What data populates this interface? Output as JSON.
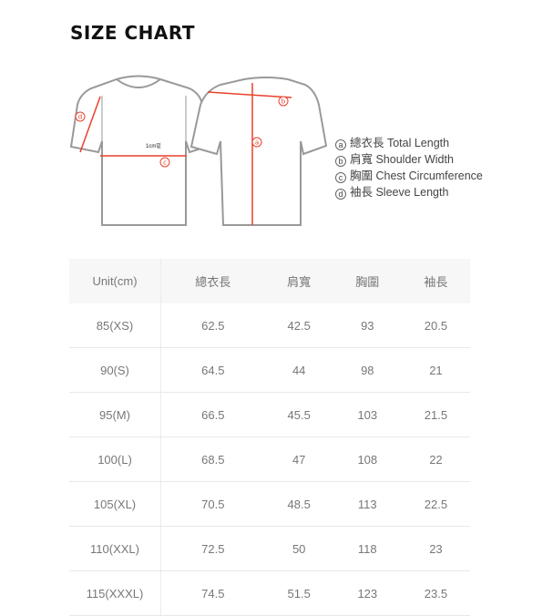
{
  "title": "SIZE CHART",
  "diagram": {
    "annotation": "1cm밑",
    "markers": [
      "a",
      "b",
      "c",
      "d"
    ],
    "accent_color": "#e8412c"
  },
  "legend": [
    {
      "marker": "a",
      "label": "總衣長 Total Length"
    },
    {
      "marker": "b",
      "label": "肩寬 Shoulder Width"
    },
    {
      "marker": "c",
      "label": "胸圍 Chest Circumference"
    },
    {
      "marker": "d",
      "label": "袖長 Sleeve Length"
    }
  ],
  "table": {
    "headers": [
      "Unit(cm)",
      "總衣長",
      "肩寬",
      "胸圍",
      "袖長"
    ],
    "rows": [
      [
        "85(XS)",
        "62.5",
        "42.5",
        "93",
        "20.5"
      ],
      [
        "90(S)",
        "64.5",
        "44",
        "98",
        "21"
      ],
      [
        "95(M)",
        "66.5",
        "45.5",
        "103",
        "21.5"
      ],
      [
        "100(L)",
        "68.5",
        "47",
        "108",
        "22"
      ],
      [
        "105(XL)",
        "70.5",
        "48.5",
        "113",
        "22.5"
      ],
      [
        "110(XXL)",
        "72.5",
        "50",
        "118",
        "23"
      ],
      [
        "115(XXXL)",
        "74.5",
        "51.5",
        "123",
        "23.5"
      ]
    ]
  }
}
